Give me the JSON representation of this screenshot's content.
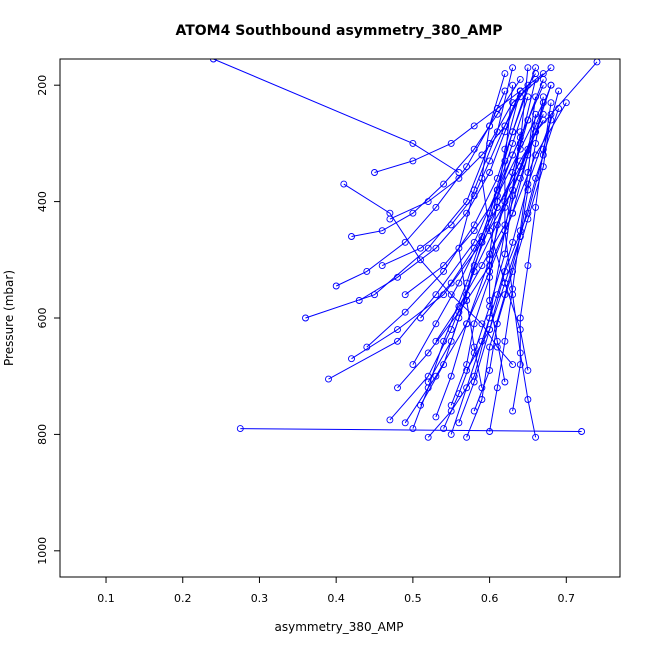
{
  "chart_data": {
    "type": "line",
    "title": "ATOM4 Southbound asymmetry_380_AMP",
    "xlabel": "asymmetry_380_AMP",
    "ylabel": "Pressure (mbar)",
    "xlim": [
      0.04,
      0.77
    ],
    "ylim": [
      1045,
      155
    ],
    "y_reversed": true,
    "x_ticks": [
      0.1,
      0.2,
      0.3,
      0.4,
      0.5,
      0.6,
      0.7
    ],
    "x_tick_labels": [
      "0.1",
      "0.2",
      "0.3",
      "0.4",
      "0.5",
      "0.6",
      "0.7"
    ],
    "y_ticks": [
      200,
      400,
      600,
      800,
      1000
    ],
    "y_tick_labels": [
      "200",
      "400",
      "600",
      "800",
      "1000"
    ],
    "grid": false,
    "series_color": "#0000ff",
    "marker": "open-circle",
    "series": [
      {
        "x": [
          0.275,
          0.72
        ],
        "y": [
          790,
          795
        ]
      },
      {
        "x": [
          0.24,
          0.5,
          0.56
        ],
        "y": [
          155,
          300,
          350
        ]
      },
      {
        "x": [
          0.52,
          0.55,
          0.58,
          0.6,
          0.62,
          0.64,
          0.65
        ],
        "y": [
          805,
          760,
          700,
          600,
          450,
          300,
          170
        ]
      },
      {
        "x": [
          0.5,
          0.52,
          0.54,
          0.57,
          0.6,
          0.63,
          0.66
        ],
        "y": [
          790,
          720,
          640,
          540,
          420,
          280,
          170
        ]
      },
      {
        "x": [
          0.36,
          0.45,
          0.52,
          0.57,
          0.6,
          0.63,
          0.68
        ],
        "y": [
          600,
          560,
          480,
          400,
          300,
          230,
          170
        ]
      },
      {
        "x": [
          0.39,
          0.48,
          0.53,
          0.58,
          0.61,
          0.64,
          0.67
        ],
        "y": [
          705,
          640,
          560,
          470,
          380,
          290,
          200
        ]
      },
      {
        "x": [
          0.41,
          0.47,
          0.51,
          0.55,
          0.59,
          0.61,
          0.63
        ],
        "y": [
          370,
          420,
          500,
          560,
          610,
          650,
          680
        ]
      },
      {
        "x": [
          0.47,
          0.52,
          0.55,
          0.58,
          0.62,
          0.65,
          0.67
        ],
        "y": [
          775,
          700,
          620,
          520,
          410,
          310,
          250
        ]
      },
      {
        "x": [
          0.53,
          0.55,
          0.57,
          0.6,
          0.63,
          0.66,
          0.7
        ],
        "y": [
          770,
          700,
          610,
          520,
          420,
          320,
          230
        ]
      },
      {
        "x": [
          0.55,
          0.57,
          0.59,
          0.61,
          0.63,
          0.65,
          0.68
        ],
        "y": [
          800,
          720,
          640,
          560,
          470,
          370,
          260
        ]
      },
      {
        "x": [
          0.57,
          0.59,
          0.6,
          0.62,
          0.64,
          0.66,
          0.69
        ],
        "y": [
          805,
          740,
          650,
          560,
          460,
          360,
          240
        ]
      },
      {
        "x": [
          0.66,
          0.65,
          0.64,
          0.63,
          0.62,
          0.62,
          0.63
        ],
        "y": [
          805,
          740,
          660,
          560,
          450,
          330,
          200
        ]
      },
      {
        "x": [
          0.42,
          0.46,
          0.5,
          0.54,
          0.58,
          0.61,
          0.64
        ],
        "y": [
          460,
          450,
          420,
          370,
          310,
          250,
          190
        ]
      },
      {
        "x": [
          0.4,
          0.44,
          0.49,
          0.53,
          0.57,
          0.6,
          0.62
        ],
        "y": [
          545,
          520,
          470,
          410,
          340,
          270,
          210
        ]
      },
      {
        "x": [
          0.42,
          0.48,
          0.54,
          0.59,
          0.63,
          0.66,
          0.74
        ],
        "y": [
          670,
          620,
          560,
          470,
          380,
          280,
          160
        ]
      },
      {
        "x": [
          0.45,
          0.5,
          0.55,
          0.58,
          0.61,
          0.64,
          0.67
        ],
        "y": [
          350,
          330,
          300,
          270,
          240,
          210,
          180
        ]
      },
      {
        "x": [
          0.49,
          0.53,
          0.57,
          0.6,
          0.62,
          0.64,
          0.66
        ],
        "y": [
          780,
          700,
          610,
          500,
          400,
          300,
          190
        ]
      },
      {
        "x": [
          0.51,
          0.54,
          0.56,
          0.58,
          0.61,
          0.64,
          0.67
        ],
        "y": [
          750,
          680,
          600,
          510,
          410,
          330,
          260
        ]
      },
      {
        "x": [
          0.56,
          0.58,
          0.6,
          0.62,
          0.65,
          0.67,
          0.68
        ],
        "y": [
          780,
          710,
          620,
          520,
          420,
          320,
          230
        ]
      },
      {
        "x": [
          0.5,
          0.53,
          0.56,
          0.59,
          0.61,
          0.63,
          0.65
        ],
        "y": [
          680,
          610,
          540,
          460,
          380,
          300,
          220
        ]
      },
      {
        "x": [
          0.44,
          0.49,
          0.54,
          0.58,
          0.61,
          0.63,
          0.65
        ],
        "y": [
          650,
          590,
          520,
          440,
          360,
          280,
          200
        ]
      },
      {
        "x": [
          0.46,
          0.51,
          0.55,
          0.58,
          0.6,
          0.62,
          0.64
        ],
        "y": [
          510,
          480,
          440,
          390,
          330,
          270,
          210
        ]
      },
      {
        "x": [
          0.52,
          0.55,
          0.57,
          0.59,
          0.61,
          0.64,
          0.67
        ],
        "y": [
          710,
          640,
          560,
          470,
          390,
          310,
          230
        ]
      },
      {
        "x": [
          0.58,
          0.6,
          0.61,
          0.63,
          0.65,
          0.67,
          0.68
        ],
        "y": [
          760,
          690,
          610,
          520,
          430,
          340,
          250
        ]
      },
      {
        "x": [
          0.54,
          0.56,
          0.58,
          0.6,
          0.62,
          0.63,
          0.64
        ],
        "y": [
          790,
          730,
          660,
          580,
          490,
          390,
          280
        ]
      },
      {
        "x": [
          0.48,
          0.52,
          0.56,
          0.6,
          0.63,
          0.65,
          0.66
        ],
        "y": [
          720,
          660,
          590,
          510,
          420,
          320,
          220
        ]
      },
      {
        "x": [
          0.6,
          0.61,
          0.62,
          0.63,
          0.64,
          0.65,
          0.66
        ],
        "y": [
          795,
          720,
          640,
          550,
          450,
          350,
          250
        ]
      },
      {
        "x": [
          0.63,
          0.64,
          0.64,
          0.65,
          0.66,
          0.67,
          0.69
        ],
        "y": [
          760,
          680,
          600,
          510,
          410,
          310,
          210
        ]
      },
      {
        "x": [
          0.59,
          0.58,
          0.57,
          0.56,
          0.58,
          0.61,
          0.63
        ],
        "y": [
          720,
          650,
          570,
          480,
          380,
          280,
          170
        ]
      },
      {
        "x": [
          0.53,
          0.56,
          0.59,
          0.62,
          0.64,
          0.66,
          0.68
        ],
        "y": [
          640,
          580,
          510,
          440,
          360,
          280,
          200
        ]
      },
      {
        "x": [
          0.62,
          0.61,
          0.6,
          0.6,
          0.61,
          0.62,
          0.64
        ],
        "y": [
          710,
          640,
          570,
          490,
          400,
          310,
          210
        ]
      },
      {
        "x": [
          0.55,
          0.57,
          0.58,
          0.6,
          0.61,
          0.63,
          0.65
        ],
        "y": [
          750,
          680,
          610,
          530,
          440,
          350,
          260
        ]
      },
      {
        "x": [
          0.57,
          0.6,
          0.62,
          0.64,
          0.65,
          0.66,
          0.67
        ],
        "y": [
          690,
          620,
          540,
          460,
          380,
          300,
          220
        ]
      },
      {
        "x": [
          0.51,
          0.55,
          0.58,
          0.61,
          0.64,
          0.66,
          0.68
        ],
        "y": [
          600,
          540,
          480,
          410,
          340,
          270,
          200
        ]
      },
      {
        "x": [
          0.49,
          0.54,
          0.58,
          0.61,
          0.63,
          0.65,
          0.67
        ],
        "y": [
          560,
          510,
          450,
          390,
          320,
          260,
          190
        ]
      },
      {
        "x": [
          0.47,
          0.52,
          0.56,
          0.59,
          0.62,
          0.64,
          0.66
        ],
        "y": [
          430,
          400,
          360,
          320,
          270,
          220,
          180
        ]
      },
      {
        "x": [
          0.43,
          0.48,
          0.53,
          0.57,
          0.6,
          0.62,
          0.64
        ],
        "y": [
          570,
          530,
          480,
          420,
          350,
          280,
          210
        ]
      },
      {
        "x": [
          0.65,
          0.64,
          0.62,
          0.6,
          0.59,
          0.6,
          0.62
        ],
        "y": [
          690,
          620,
          540,
          450,
          360,
          270,
          180
        ]
      }
    ]
  }
}
